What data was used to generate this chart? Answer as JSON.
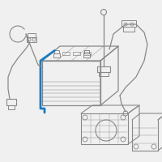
{
  "bg_color": "#f0f0f0",
  "line_color": "#888888",
  "highlight_color": "#1a7bbf",
  "fig_w": 2.0,
  "fig_h": 2.0,
  "dpi": 100
}
